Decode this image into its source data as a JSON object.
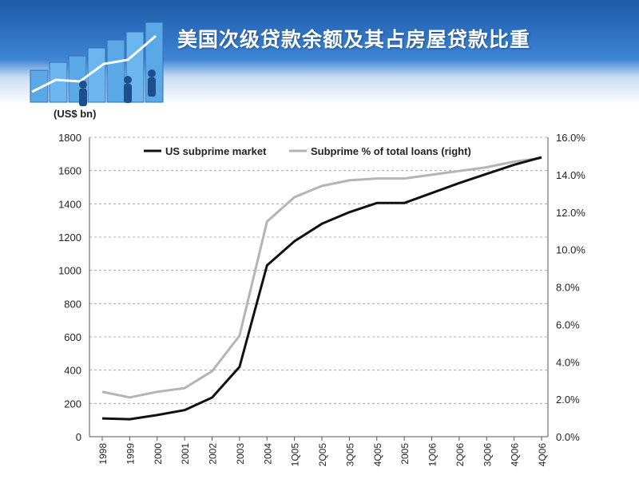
{
  "slide": {
    "title": "美国次级贷款余额及其占房屋贷款比重"
  },
  "colors": {
    "banner": "#2f73c2",
    "series_market": "#111111",
    "series_percent": "#b4b4b4",
    "grid": "#9a9a9a"
  },
  "chart_data": {
    "type": "line",
    "title": "",
    "unit_label": "(US$ bn)",
    "categories": [
      "1998",
      "1999",
      "2000",
      "2001",
      "2002",
      "2003",
      "2004",
      "1Q05",
      "2Q05",
      "3Q05",
      "4Q05",
      "2005",
      "1Q06",
      "2Q06",
      "3Q06",
      "4Q06",
      "4Q06"
    ],
    "y_left": {
      "ticks": [
        "0",
        "200",
        "400",
        "600",
        "800",
        "1000",
        "1200",
        "1400",
        "1600",
        "1800"
      ],
      "lim": [
        0,
        1800
      ]
    },
    "y_right": {
      "ticks": [
        "0.0%",
        "2.0%",
        "4.0%",
        "6.0%",
        "8.0%",
        "10.0%",
        "12.0%",
        "14.0%",
        "16.0%"
      ],
      "lim": [
        0,
        16
      ]
    },
    "grid": true,
    "legend_position": "top",
    "series": [
      {
        "name": "US subprime market",
        "axis": "left",
        "values": [
          110,
          105,
          130,
          160,
          235,
          420,
          1030,
          1175,
          1280,
          1350,
          1405,
          1405,
          1465,
          1525,
          1580,
          1635,
          1680
        ]
      },
      {
        "name": "Subprime % of total loans (right)",
        "axis": "right",
        "values": [
          2.4,
          2.1,
          2.4,
          2.6,
          3.5,
          5.4,
          11.5,
          12.8,
          13.4,
          13.7,
          13.8,
          13.8,
          14.0,
          14.2,
          14.4,
          14.7,
          14.9
        ]
      }
    ]
  }
}
